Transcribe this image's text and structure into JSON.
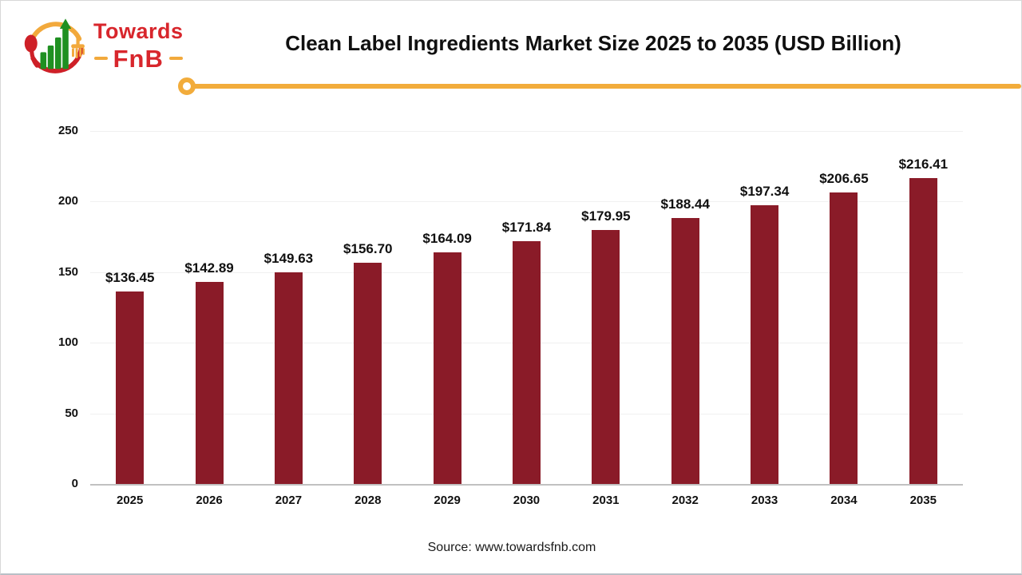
{
  "logo": {
    "brand_top": "Towards",
    "brand_bottom": "FnB",
    "colors": {
      "red": "#d8262c",
      "yellow": "#f2a93c",
      "green": "#1f9021"
    }
  },
  "header": {
    "title": "Clean Label Ingredients Market Size 2025 to 2035 (USD Billion)"
  },
  "divider": {
    "color": "#f2ac3b"
  },
  "chart_data": {
    "type": "bar",
    "title": "Clean Label Ingredients Market Size 2025 to 2035 (USD Billion)",
    "categories": [
      "2025",
      "2026",
      "2027",
      "2028",
      "2029",
      "2030",
      "2031",
      "2032",
      "2033",
      "2034",
      "2035"
    ],
    "values": [
      136.45,
      142.89,
      149.63,
      156.7,
      164.09,
      171.84,
      179.95,
      188.44,
      197.34,
      206.65,
      216.41
    ],
    "value_labels": [
      "$136.45",
      "$142.89",
      "$149.63",
      "$156.70",
      "$164.09",
      "$171.84",
      "$179.95",
      "$188.44",
      "$197.34",
      "$206.65",
      "$216.41"
    ],
    "bar_color": "#8a1b28",
    "xlabel": "",
    "ylabel": "",
    "ylim": [
      0,
      250
    ],
    "yticks": [
      0,
      50,
      100,
      150,
      200,
      250
    ],
    "grid": true,
    "legend_position": "none"
  },
  "footer": {
    "source": "Source: www.towardsfnb.com"
  }
}
